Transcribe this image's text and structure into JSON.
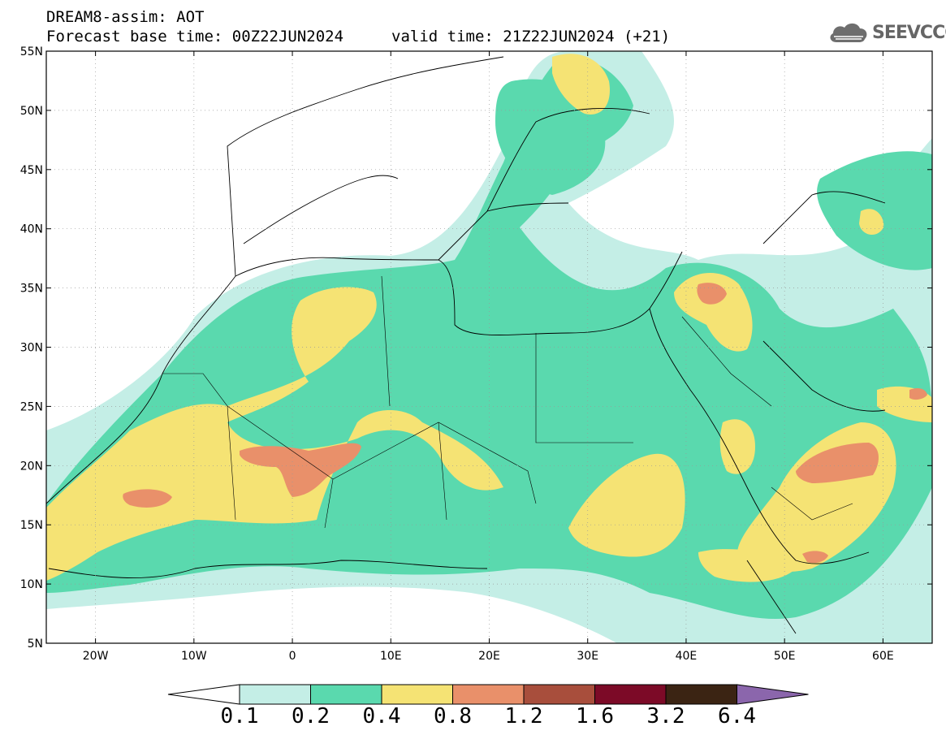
{
  "header": {
    "title": "DREAM8-assim: AOT",
    "base_time": "Forecast base time: 00Z22JUN2024",
    "valid_time": "valid time: 21Z22JUN2024 (+21)",
    "logo_text": "SEEVCCC",
    "logo_icon": "cloud-icon"
  },
  "map": {
    "extent": {
      "lon_min": -25,
      "lon_max": 65,
      "lat_min": 5,
      "lat_max": 55
    },
    "lat_ticks": [
      {
        "value": 5,
        "label": "5N"
      },
      {
        "value": 10,
        "label": "10N"
      },
      {
        "value": 15,
        "label": "15N"
      },
      {
        "value": 20,
        "label": "20N"
      },
      {
        "value": 25,
        "label": "25N"
      },
      {
        "value": 30,
        "label": "30N"
      },
      {
        "value": 35,
        "label": "35N"
      },
      {
        "value": 40,
        "label": "40N"
      },
      {
        "value": 45,
        "label": "45N"
      },
      {
        "value": 50,
        "label": "50N"
      },
      {
        "value": 55,
        "label": "55N"
      }
    ],
    "lon_ticks": [
      {
        "value": -20,
        "label": "20W"
      },
      {
        "value": -10,
        "label": "10W"
      },
      {
        "value": 0,
        "label": "0"
      },
      {
        "value": 10,
        "label": "10E"
      },
      {
        "value": 20,
        "label": "20E"
      },
      {
        "value": 30,
        "label": "30E"
      },
      {
        "value": 40,
        "label": "40E"
      },
      {
        "value": 50,
        "label": "50E"
      },
      {
        "value": 60,
        "label": "60E"
      }
    ],
    "grid": "dotted"
  },
  "colorbar": {
    "levels": [
      "0.1",
      "0.2",
      "0.4",
      "0.8",
      "1.2",
      "1.6",
      "3.2",
      "6.4"
    ],
    "colors": [
      "#c4eee6",
      "#5ad9ae",
      "#f5e374",
      "#e9906a",
      "#a84e3c",
      "#7c0a27",
      "#3b2413",
      "#8b66ac"
    ],
    "under_color": "#ffffff"
  }
}
